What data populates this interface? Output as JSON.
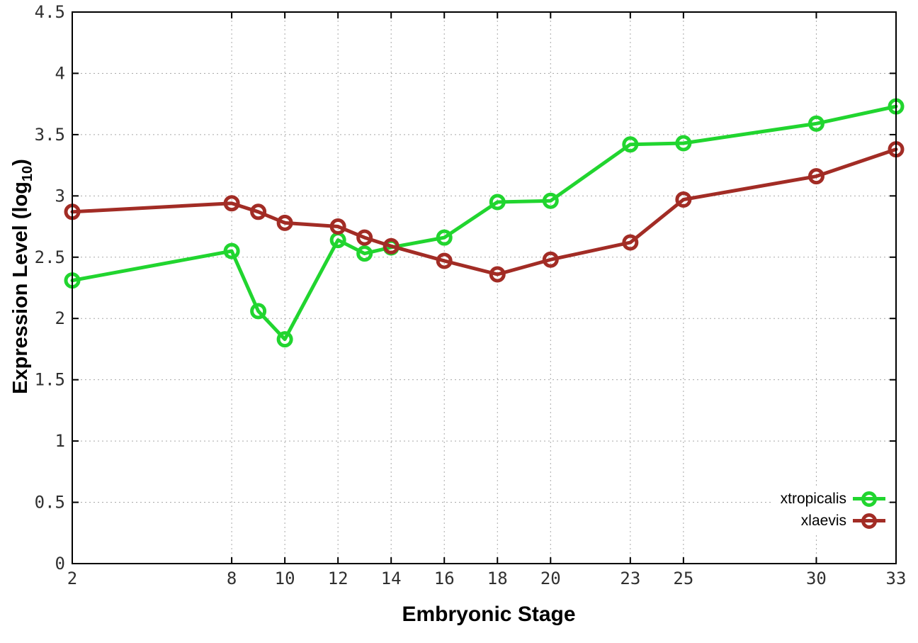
{
  "chart_data": {
    "type": "line",
    "title": "",
    "xlabel": "Embryonic Stage",
    "ylabel": "Expression Level (log10)",
    "ylabel_parts": {
      "prefix": "Expression Level (log",
      "sub": "10",
      "suffix": ")"
    },
    "x": [
      2,
      8,
      9,
      10,
      12,
      13,
      14,
      16,
      18,
      20,
      23,
      25,
      30,
      33
    ],
    "series": [
      {
        "name": "xtropicalis",
        "color": "#21d52f",
        "values": [
          2.31,
          2.55,
          2.06,
          1.83,
          2.64,
          2.53,
          2.58,
          2.66,
          2.95,
          2.96,
          3.42,
          3.43,
          3.59,
          3.73
        ]
      },
      {
        "name": "xlaevis",
        "color": "#a22c25",
        "values": [
          2.87,
          2.94,
          2.87,
          2.78,
          2.75,
          2.66,
          2.59,
          2.47,
          2.36,
          2.48,
          2.62,
          2.97,
          3.16,
          3.38
        ]
      }
    ],
    "xlim": [
      2,
      33
    ],
    "ylim": [
      0,
      4.5
    ],
    "x_ticks": [
      2,
      8,
      10,
      12,
      14,
      16,
      18,
      20,
      23,
      25,
      30,
      33
    ],
    "y_ticks": [
      0,
      0.5,
      1,
      1.5,
      2,
      2.5,
      3,
      3.5,
      4,
      4.5
    ],
    "grid": true,
    "legend_position": "bottom-right",
    "marker": "open-circle"
  },
  "colors": {
    "axis": "#000000",
    "grid": "#a8a8a8",
    "tick_label": "#303030"
  }
}
